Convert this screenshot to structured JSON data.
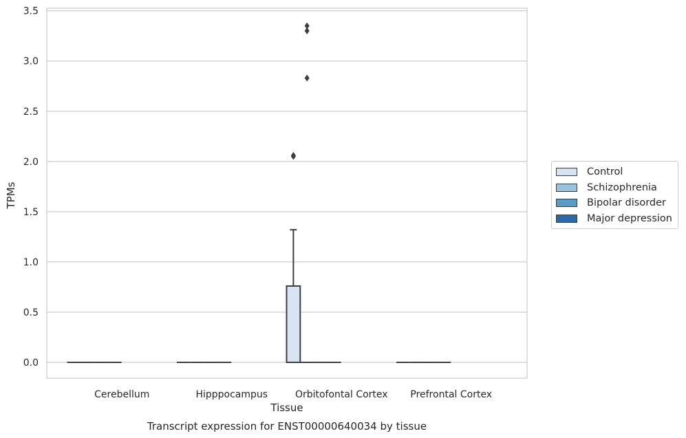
{
  "chart_data": {
    "type": "box",
    "title": "Transcript expression for ENST00000640034 by tissue",
    "xlabel": "Tissue",
    "ylabel": "TPMs",
    "ylim": [
      -0.16,
      3.52
    ],
    "yticks": [
      0.0,
      0.5,
      1.0,
      1.5,
      2.0,
      2.5,
      3.0,
      3.5
    ],
    "ytick_labels": [
      "0.0",
      "0.5",
      "1.0",
      "1.5",
      "2.0",
      "2.5",
      "3.0",
      "3.5"
    ],
    "grid": "horizontal",
    "legend_position": "right",
    "categories": [
      "Cerebellum",
      "Hipppocampus",
      "Orbitofontal Cortex",
      "Prefrontal Cortex"
    ],
    "series": [
      {
        "name": "Control",
        "color": "#d6e4f3",
        "boxes": [
          {
            "q1": 0,
            "median": 0,
            "q3": 0,
            "whisker_low": 0,
            "whisker_high": 0,
            "outliers": []
          },
          {
            "q1": 0,
            "median": 0,
            "q3": 0,
            "whisker_low": 0,
            "whisker_high": 0,
            "outliers": []
          },
          {
            "q1": 0,
            "median": 0,
            "q3": 0.76,
            "whisker_low": 0,
            "whisker_high": 1.32,
            "outliers": [
              2.05,
              2.06
            ]
          },
          {
            "q1": 0,
            "median": 0,
            "q3": 0,
            "whisker_low": 0,
            "whisker_high": 0,
            "outliers": []
          }
        ]
      },
      {
        "name": "Schizophrenia",
        "color": "#9ac3de",
        "boxes": [
          {
            "q1": 0,
            "median": 0,
            "q3": 0,
            "whisker_low": 0,
            "whisker_high": 0,
            "outliers": []
          },
          {
            "q1": 0,
            "median": 0,
            "q3": 0,
            "whisker_low": 0,
            "whisker_high": 0,
            "outliers": []
          },
          {
            "q1": 0,
            "median": 0,
            "q3": 0,
            "whisker_low": 0,
            "whisker_high": 0,
            "outliers": [
              2.83,
              3.3,
              3.35
            ]
          },
          {
            "q1": 0,
            "median": 0,
            "q3": 0,
            "whisker_low": 0,
            "whisker_high": 0,
            "outliers": []
          }
        ]
      },
      {
        "name": "Bipolar disorder",
        "color": "#5b9bc9",
        "boxes": [
          {
            "q1": 0,
            "median": 0,
            "q3": 0,
            "whisker_low": 0,
            "whisker_high": 0,
            "outliers": []
          },
          {
            "q1": 0,
            "median": 0,
            "q3": 0,
            "whisker_low": 0,
            "whisker_high": 0,
            "outliers": []
          },
          {
            "q1": 0,
            "median": 0,
            "q3": 0,
            "whisker_low": 0,
            "whisker_high": 0,
            "outliers": []
          },
          {
            "q1": 0,
            "median": 0,
            "q3": 0,
            "whisker_low": 0,
            "whisker_high": 0,
            "outliers": []
          }
        ]
      },
      {
        "name": "Major depression",
        "color": "#2a6aa8",
        "boxes": [
          {
            "q1": 0,
            "median": 0,
            "q3": 0,
            "whisker_low": 0,
            "whisker_high": 0,
            "outliers": []
          },
          {
            "q1": 0,
            "median": 0,
            "q3": 0,
            "whisker_low": 0,
            "whisker_high": 0,
            "outliers": []
          },
          {
            "q1": 0,
            "median": 0,
            "q3": 0,
            "whisker_low": 0,
            "whisker_high": 0,
            "outliers": []
          },
          {
            "q1": 0,
            "median": 0,
            "q3": 0,
            "whisker_low": 0,
            "whisker_high": 0,
            "outliers": []
          }
        ]
      }
    ]
  }
}
